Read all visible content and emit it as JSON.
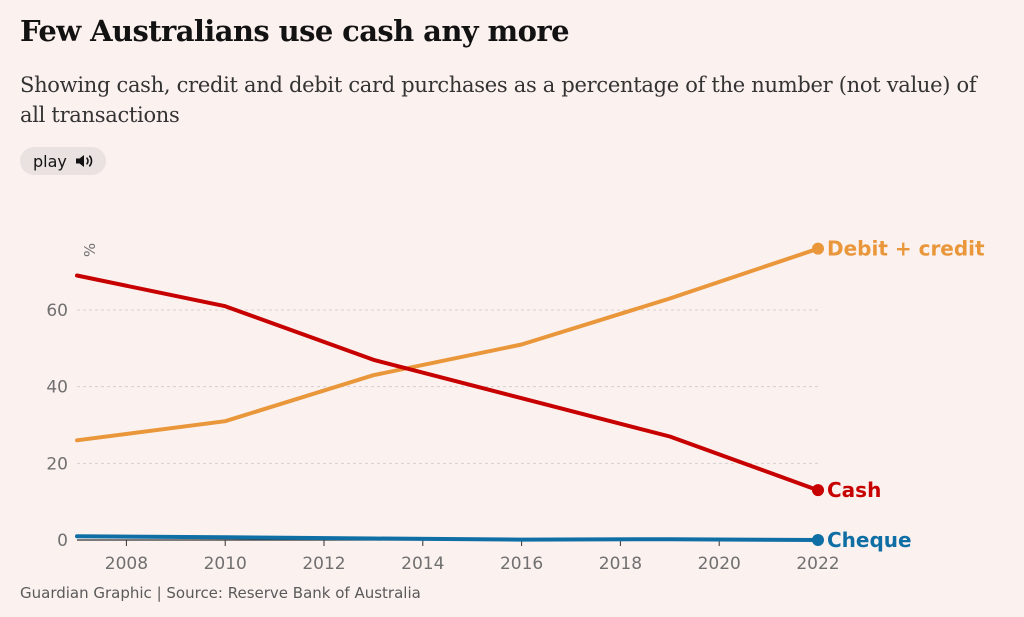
{
  "header": {
    "title": "Few Australians use cash any more",
    "subtitle": "Showing cash, credit and debit card purchases as a percentage of the number (not value) of all transactions",
    "play_label": "play"
  },
  "footer": {
    "source": "Guardian Graphic | Source: Reserve Bank of Australia"
  },
  "colors": {
    "background": "#fbf1ef",
    "debit_credit": "#e9973a",
    "cash": "#c70000",
    "cheque": "#0f6fa5",
    "grid": "#d8cfcd"
  },
  "chart_data": {
    "type": "line",
    "title": "Few Australians use cash any more",
    "xlabel": "",
    "ylabel": "%",
    "xlim": [
      2007,
      2022
    ],
    "ylim": [
      0,
      80
    ],
    "x_ticks": [
      2008,
      2010,
      2012,
      2014,
      2016,
      2018,
      2020,
      2022
    ],
    "y_ticks": [
      0,
      20,
      40,
      60
    ],
    "series": [
      {
        "name": "Debit + credit",
        "color": "#e9973a",
        "x": [
          2007,
          2010,
          2013,
          2016,
          2019,
          2022
        ],
        "values": [
          26,
          31,
          43,
          51,
          63,
          76
        ]
      },
      {
        "name": "Cash",
        "color": "#c70000",
        "x": [
          2007,
          2010,
          2013,
          2016,
          2019,
          2022
        ],
        "values": [
          69,
          61,
          47,
          37,
          27,
          13
        ]
      },
      {
        "name": "Cheque",
        "color": "#0f6fa5",
        "x": [
          2007,
          2010,
          2013,
          2016,
          2019,
          2022
        ],
        "values": [
          1,
          0.7,
          0.4,
          0.1,
          0.2,
          0
        ]
      }
    ]
  }
}
